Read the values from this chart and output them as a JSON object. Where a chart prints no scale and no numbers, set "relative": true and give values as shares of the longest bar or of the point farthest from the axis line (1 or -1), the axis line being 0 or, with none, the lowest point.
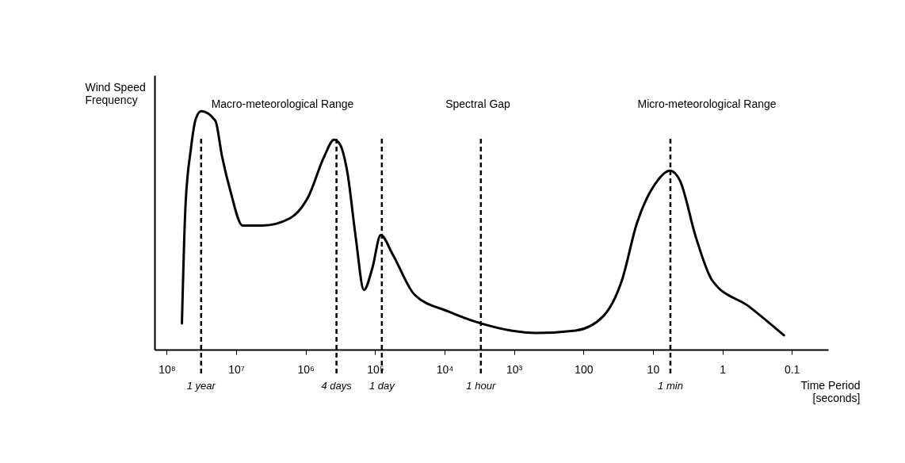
{
  "chart_data": {
    "type": "line",
    "relative": true,
    "log": "x",
    "tick_labels": "x",
    "ylabel": "Wind Speed Frequency",
    "xlabel": "Time Period [seconds]",
    "xlim": [
      150000000,
      0.03
    ],
    "xticks": [
      {
        "value": 100000000,
        "label": "10⁸"
      },
      {
        "value": 10000000,
        "label": "10⁷"
      },
      {
        "value": 1000000,
        "label": "10⁶"
      },
      {
        "value": 100000,
        "label": "10⁵"
      },
      {
        "value": 10000,
        "label": "10⁴"
      },
      {
        "value": 1000,
        "label": "10³"
      },
      100,
      10,
      1,
      0.1
    ],
    "series": [
      {
        "color": "#000000",
        "x": [
          60500000,
          54000000,
          45000000,
          38000000,
          32000000,
          20000000,
          16000000,
          12000000,
          8100000,
          4200000,
          1700000,
          920000,
          540000,
          390000,
          320000,
          250000,
          190000,
          145000,
          110000,
          83000,
          56000,
          27000,
          8800,
          3000,
          1100,
          480,
          130,
          52,
          28,
          17,
          9,
          5.7,
          4.1,
          2.4,
          1.4,
          0.41,
          0.13
        ],
        "values": [
          0.11,
          0.59,
          0.84,
          0.97,
          1,
          0.96,
          0.81,
          0.66,
          0.52,
          0.52,
          0.55,
          0.64,
          0.81,
          0.88,
          0.86,
          0.74,
          0.47,
          0.25,
          0.34,
          0.48,
          0.4,
          0.23,
          0.16,
          0.11,
          0.08,
          0.07,
          0.08,
          0.14,
          0.29,
          0.53,
          0.7,
          0.75,
          0.71,
          0.47,
          0.29,
          0.18,
          0.06
        ]
      }
    ],
    "ref_lines": [
      {
        "axis": "x",
        "value": 32000000,
        "label": "1 year",
        "color": "#000000",
        "line_style": "dashed"
      },
      {
        "axis": "x",
        "value": 360000,
        "label": "4 days",
        "color": "#000000",
        "line_style": "dashed"
      },
      {
        "axis": "x",
        "value": 80000,
        "label": "1 day",
        "color": "#000000",
        "line_style": "dashed"
      },
      {
        "axis": "x",
        "value": 3000,
        "label": "1 hour",
        "color": "#000000",
        "line_style": "dashed"
      },
      {
        "axis": "x",
        "value": 5.6,
        "label": "1 min",
        "color": "#000000",
        "line_style": "dashed"
      }
    ],
    "annotations": [
      "Macro-meteorological Range",
      "Spectral Gap",
      "Micro-meteorological Range"
    ]
  }
}
